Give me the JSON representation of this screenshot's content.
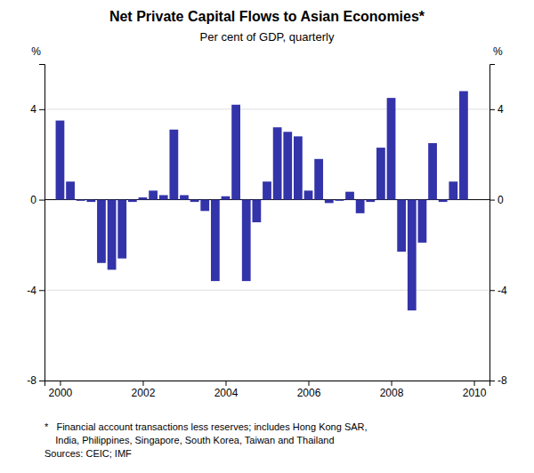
{
  "chart_data": {
    "type": "bar",
    "title": "Net Private Capital Flows to Asian Economies*",
    "subtitle": "Per cent of GDP, quarterly",
    "ylabel": "%",
    "y2label": "%",
    "color": "#3333AA",
    "x": [
      2000,
      2000.25,
      2000.5,
      2000.75,
      2001,
      2001.25,
      2001.5,
      2001.75,
      2002,
      2002.25,
      2002.5,
      2002.75,
      2003,
      2003.25,
      2003.5,
      2003.75,
      2004,
      2004.25,
      2004.5,
      2004.75,
      2005,
      2005.25,
      2005.5,
      2005.75,
      2006,
      2006.25,
      2006.5,
      2006.75,
      2007,
      2007.25,
      2007.5,
      2007.75,
      2008,
      2008.25,
      2008.5,
      2008.75,
      2009,
      2009.25,
      2009.5,
      2009.75
    ],
    "values": [
      3.5,
      0.8,
      -0.05,
      -0.1,
      -2.8,
      -3.1,
      -2.6,
      -0.1,
      0.1,
      0.4,
      0.2,
      3.1,
      0.2,
      -0.1,
      -0.5,
      -3.6,
      0.15,
      4.2,
      -3.6,
      -1.0,
      0.8,
      3.2,
      3.0,
      2.8,
      0.4,
      1.8,
      -0.15,
      -0.05,
      0.35,
      -0.6,
      -0.1,
      2.3,
      4.5,
      -2.3,
      -4.9,
      -1.9,
      2.5,
      -0.1,
      0.8,
      4.8
    ],
    "xlim": [
      1999.625,
      2010.375
    ],
    "xticks": [
      2000,
      2002,
      2004,
      2006,
      2008,
      2010
    ],
    "ylim": [
      -8,
      6
    ],
    "yticks": [
      -8,
      -4,
      0,
      4
    ],
    "y2lim": [
      -8,
      6
    ],
    "y2ticks": [
      -8,
      -4,
      0,
      4
    ],
    "grid": true,
    "footnote": [
      "*   Financial account transactions less reserves; includes Hong Kong SAR,",
      "    India, Philippines, Singapore, South Korea, Taiwan and Thailand",
      "Sources: CEIC; IMF"
    ]
  }
}
